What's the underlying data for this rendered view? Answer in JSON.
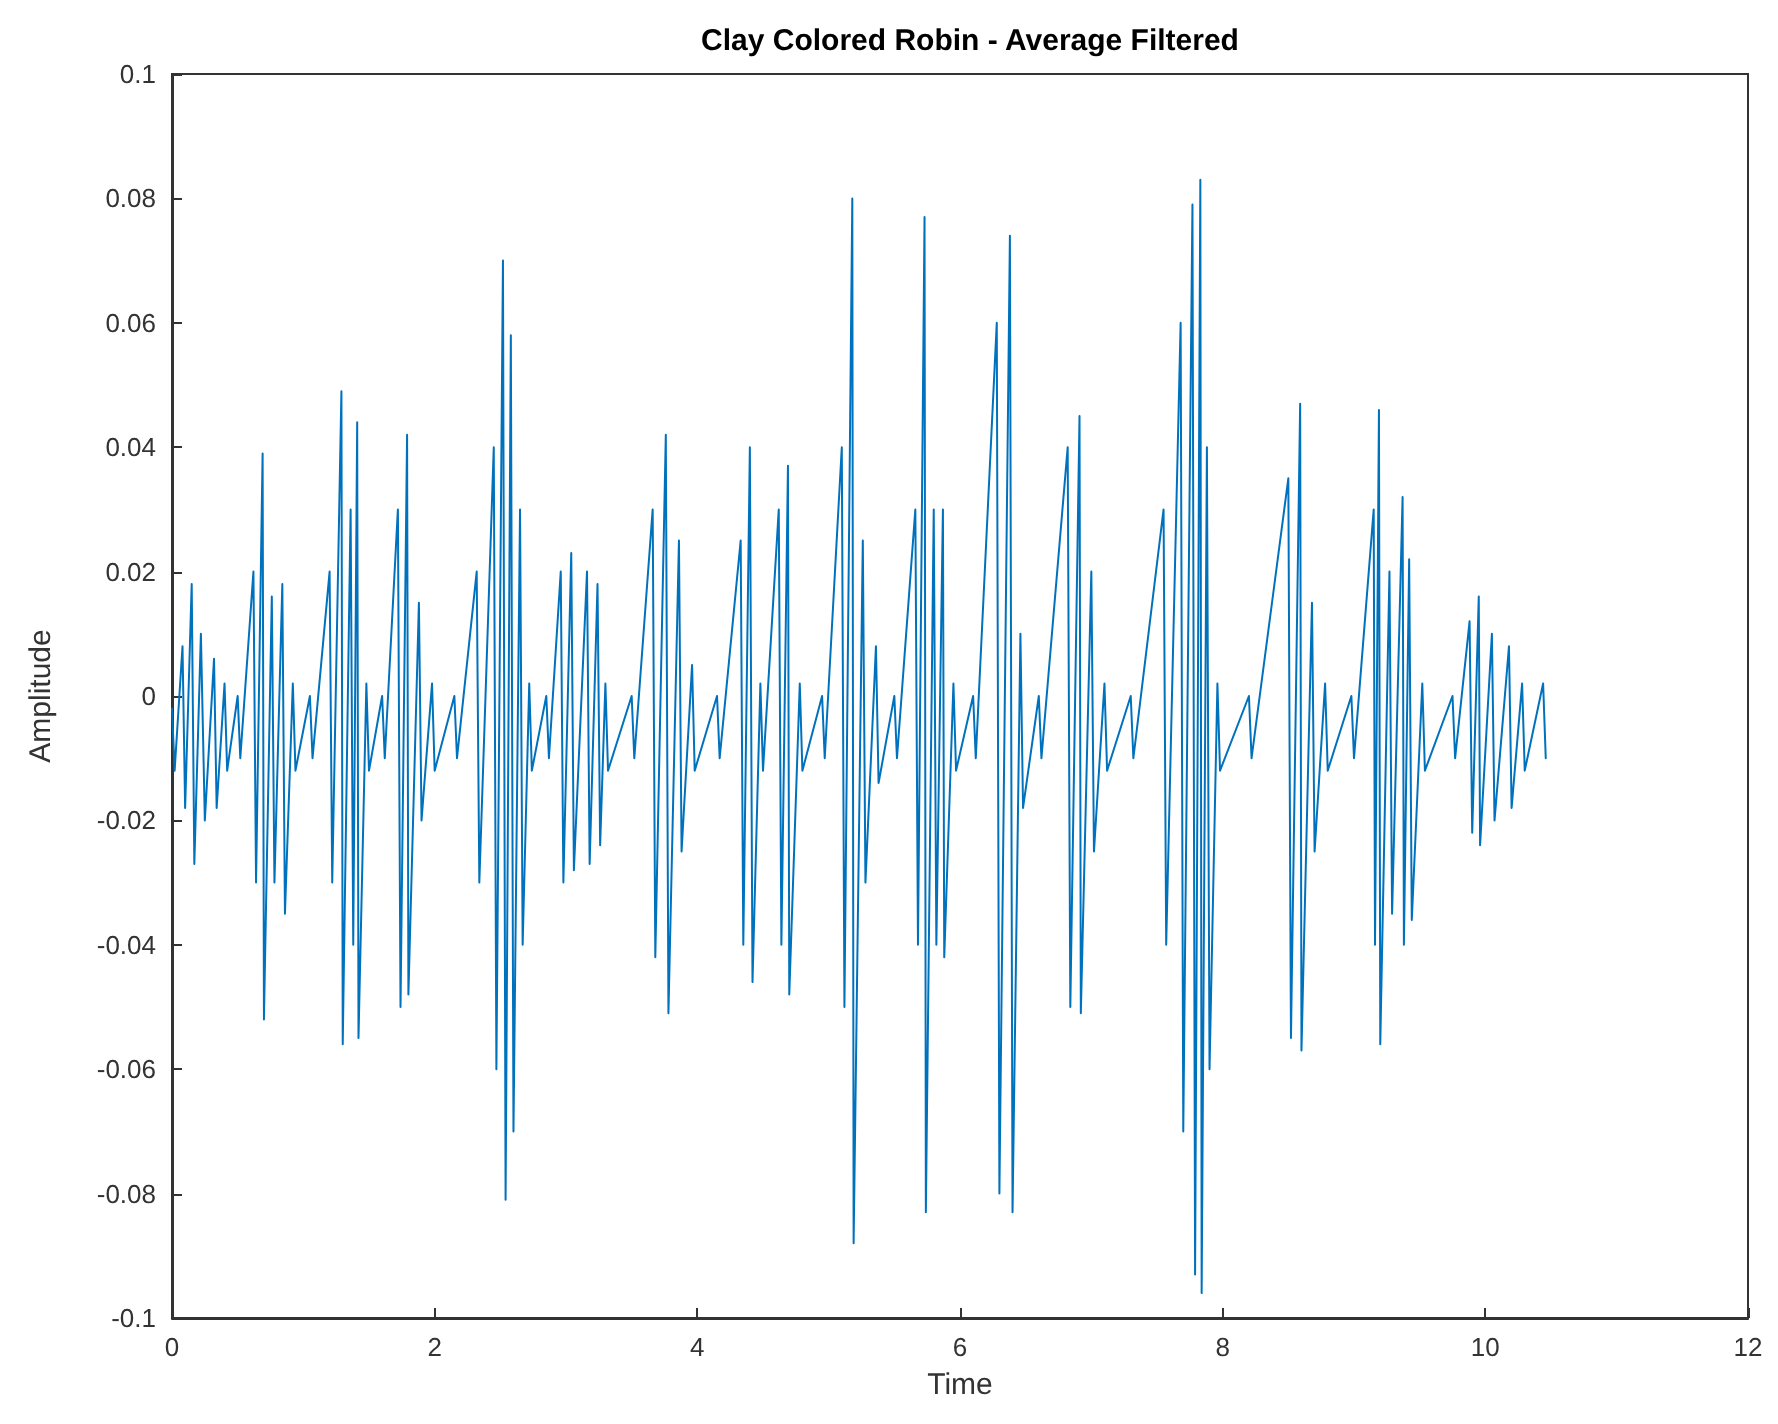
{
  "chart_data": {
    "type": "line",
    "title": "Clay Colored Robin - Average Filtered",
    "xlabel": "Time",
    "ylabel": "Amplitude",
    "xlim": [
      0,
      12
    ],
    "xticks": [
      0,
      2,
      4,
      6,
      8,
      10,
      12
    ],
    "ylim": [
      -0.1,
      0.1
    ],
    "yticks": [
      -0.1,
      -0.08,
      -0.06,
      -0.04,
      -0.02,
      0,
      0.02,
      0.04,
      0.06,
      0.08,
      0.1
    ],
    "grid": false,
    "marker": "none",
    "line_style": "solid",
    "series": [
      {
        "color": "#0072bd",
        "x": [
          0.0,
          0.02,
          0.08,
          0.1,
          0.15,
          0.17,
          0.22,
          0.25,
          0.32,
          0.34,
          0.4,
          0.42,
          0.5,
          0.52,
          0.62,
          0.64,
          0.69,
          0.7,
          0.76,
          0.78,
          0.84,
          0.86,
          0.92,
          0.94,
          1.05,
          1.07,
          1.2,
          1.22,
          1.29,
          1.3,
          1.36,
          1.38,
          1.41,
          1.42,
          1.48,
          1.5,
          1.6,
          1.62,
          1.72,
          1.74,
          1.79,
          1.8,
          1.88,
          1.9,
          1.98,
          2.0,
          2.15,
          2.17,
          2.32,
          2.34,
          2.45,
          2.47,
          2.52,
          2.54,
          2.58,
          2.6,
          2.65,
          2.67,
          2.72,
          2.74,
          2.85,
          2.87,
          2.96,
          2.98,
          3.04,
          3.06,
          3.16,
          3.18,
          3.24,
          3.26,
          3.3,
          3.32,
          3.5,
          3.52,
          3.66,
          3.68,
          3.76,
          3.78,
          3.86,
          3.88,
          3.96,
          3.98,
          4.15,
          4.17,
          4.33,
          4.35,
          4.4,
          4.42,
          4.48,
          4.5,
          4.62,
          4.64,
          4.69,
          4.7,
          4.78,
          4.8,
          4.95,
          4.97,
          5.1,
          5.12,
          5.18,
          5.19,
          5.26,
          5.28,
          5.36,
          5.38,
          5.5,
          5.52,
          5.66,
          5.68,
          5.73,
          5.74,
          5.8,
          5.82,
          5.87,
          5.88,
          5.95,
          5.97,
          6.1,
          6.12,
          6.28,
          6.3,
          6.38,
          6.4,
          6.46,
          6.48,
          6.6,
          6.62,
          6.82,
          6.84,
          6.91,
          6.92,
          7.0,
          7.02,
          7.1,
          7.12,
          7.3,
          7.32,
          7.55,
          7.57,
          7.68,
          7.7,
          7.77,
          7.79,
          7.83,
          7.84,
          7.88,
          7.9,
          7.96,
          7.98,
          8.2,
          8.22,
          8.5,
          8.52,
          8.59,
          8.6,
          8.68,
          8.7,
          8.78,
          8.8,
          8.98,
          9.0,
          9.15,
          9.16,
          9.19,
          9.2,
          9.27,
          9.29,
          9.37,
          9.38,
          9.42,
          9.44,
          9.52,
          9.54,
          9.75,
          9.77,
          9.88,
          9.9,
          9.95,
          9.96,
          10.05,
          10.07,
          10.18,
          10.2,
          10.28,
          10.3,
          10.44,
          10.46
        ],
        "values": [
          -0.002,
          -0.012,
          0.008,
          -0.018,
          0.018,
          -0.027,
          0.01,
          -0.02,
          0.006,
          -0.018,
          0.002,
          -0.012,
          0.0,
          -0.01,
          0.02,
          -0.03,
          0.039,
          -0.052,
          0.016,
          -0.03,
          0.018,
          -0.035,
          0.002,
          -0.012,
          0.0,
          -0.01,
          0.02,
          -0.03,
          0.049,
          -0.056,
          0.03,
          -0.04,
          0.044,
          -0.055,
          0.002,
          -0.012,
          0.0,
          -0.01,
          0.03,
          -0.05,
          0.042,
          -0.048,
          0.015,
          -0.02,
          0.002,
          -0.012,
          0.0,
          -0.01,
          0.02,
          -0.03,
          0.04,
          -0.06,
          0.07,
          -0.081,
          0.058,
          -0.07,
          0.03,
          -0.04,
          0.002,
          -0.012,
          0.0,
          -0.01,
          0.02,
          -0.03,
          0.023,
          -0.028,
          0.02,
          -0.027,
          0.018,
          -0.024,
          0.002,
          -0.012,
          0.0,
          -0.01,
          0.03,
          -0.042,
          0.042,
          -0.051,
          0.025,
          -0.025,
          0.005,
          -0.012,
          0.0,
          -0.01,
          0.025,
          -0.04,
          0.04,
          -0.046,
          0.002,
          -0.012,
          0.03,
          -0.04,
          0.037,
          -0.048,
          0.002,
          -0.012,
          0.0,
          -0.01,
          0.04,
          -0.05,
          0.08,
          -0.088,
          0.025,
          -0.03,
          0.008,
          -0.014,
          0.0,
          -0.01,
          0.03,
          -0.04,
          0.077,
          -0.083,
          0.03,
          -0.04,
          0.03,
          -0.042,
          0.002,
          -0.012,
          0.0,
          -0.01,
          0.06,
          -0.08,
          0.074,
          -0.083,
          0.01,
          -0.018,
          0.0,
          -0.01,
          0.04,
          -0.05,
          0.045,
          -0.051,
          0.02,
          -0.025,
          0.002,
          -0.012,
          0.0,
          -0.01,
          0.03,
          -0.04,
          0.06,
          -0.07,
          0.079,
          -0.093,
          0.083,
          -0.096,
          0.04,
          -0.06,
          0.002,
          -0.012,
          0.0,
          -0.01,
          0.035,
          -0.055,
          0.047,
          -0.057,
          0.015,
          -0.025,
          0.002,
          -0.012,
          0.0,
          -0.01,
          0.03,
          -0.04,
          0.046,
          -0.056,
          0.02,
          -0.035,
          0.032,
          -0.04,
          0.022,
          -0.036,
          0.002,
          -0.012,
          0.0,
          -0.01,
          0.012,
          -0.022,
          0.016,
          -0.024,
          0.01,
          -0.02,
          0.008,
          -0.018,
          0.002,
          -0.012,
          0.002,
          -0.01
        ]
      }
    ]
  }
}
